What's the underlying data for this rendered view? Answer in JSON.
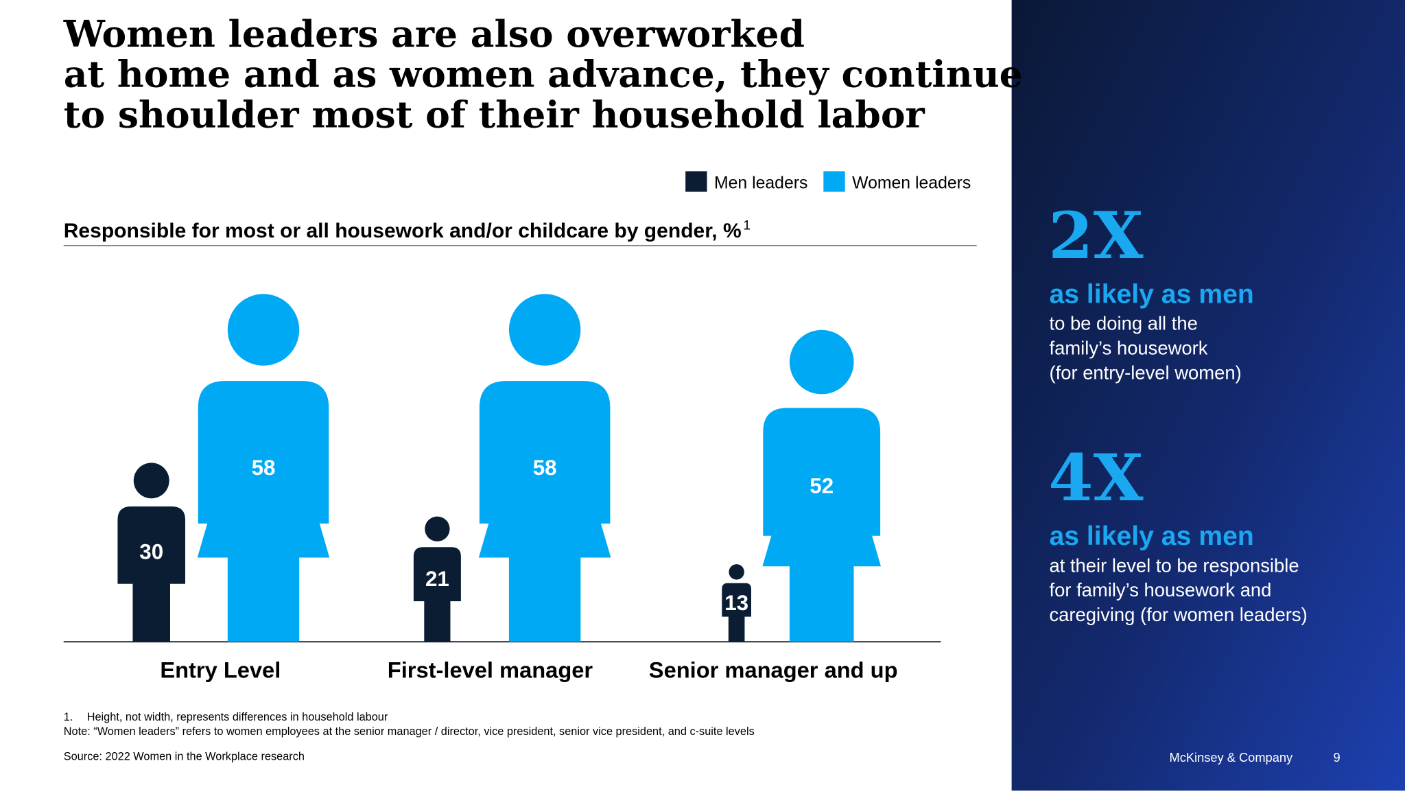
{
  "chart_data": {
    "type": "pictogram",
    "title": [
      "Women leaders are also overworked",
      "at home and as women advance, they continue",
      "to shoulder most of their household labor"
    ],
    "subtitle": "Responsible for most or all housework and/or childcare by gender, %",
    "subtitle_note": "1",
    "categories": [
      "Entry Level",
      "First-level manager",
      "Senior manager and up"
    ],
    "series": [
      {
        "name": "Men leaders",
        "color": "#0b1d33",
        "values": [
          30,
          21,
          13
        ]
      },
      {
        "name": "Women leaders",
        "color": "#00a9f4",
        "values": [
          58,
          58,
          52
        ]
      }
    ],
    "footnotes": [
      {
        "marker": "1.",
        "text": "Height, not width, represents differences in household labour"
      }
    ],
    "note": "Note: “Women leaders” refers to women employees at the senior manager / director, vice president, senior vice president, and c-suite levels",
    "source": "Source: 2022 Women in the Workplace research"
  },
  "sidebar": {
    "stats": [
      {
        "figure": "2X",
        "headline": "as likely as men",
        "lines": [
          "to be doing all the",
          "family’s housework",
          "(for entry-level women)"
        ]
      },
      {
        "figure": "4X",
        "headline": "as likely as men",
        "lines": [
          "at their level to be responsible",
          "for family’s housework and",
          "caregiving (for women leaders)"
        ]
      }
    ],
    "brand": "McKinsey & Company",
    "page_number": "9"
  }
}
